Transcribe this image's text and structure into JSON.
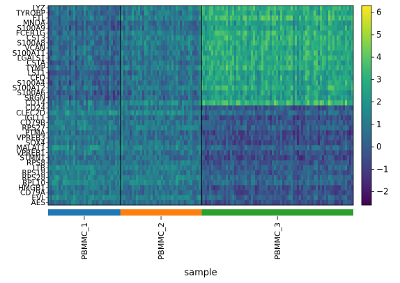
{
  "chart_data": {
    "type": "heatmap",
    "genes": [
      "LYZ",
      "TYROBP",
      "FTL",
      "MNDA",
      "S100A9",
      "FCER1G",
      "CST3",
      "S100A8",
      "VCAN",
      "S100A11",
      "LGALS1",
      "CSTA",
      "TYMP",
      "LST1",
      "CFD",
      "S100A4",
      "S100A12",
      "S100A6",
      "SRGN",
      "CD14",
      "CD24",
      "CLEC2D",
      "IGLL1",
      "CD79B",
      "RPS27",
      "PTMA",
      "VPREB3",
      "SOX4",
      "MALAT1",
      "VPREB1",
      "STMN1",
      "RPS8",
      "LTB",
      "RPS18",
      "RPS28",
      "RPL10",
      "HMGB1",
      "CD79A",
      "EVL",
      "AES"
    ],
    "samples": [
      {
        "label": "PBMMC_1",
        "color": "#1f77b4",
        "cells": 125
      },
      {
        "label": "PBMMC_2",
        "color": "#ff7f0e",
        "cells": 140
      },
      {
        "label": "PBMMC_3",
        "color": "#2ca02c",
        "cells": 262
      }
    ],
    "xlabel": "sample",
    "colorbar": {
      "vmin": -2.6,
      "vmax": 6.3,
      "ticks": [
        -2,
        -1,
        0,
        1,
        2,
        3,
        4,
        5,
        6
      ],
      "colormap": "viridis"
    },
    "group_lines": true,
    "expression_pattern": {
      "myeloid_genes_rows": [
        0,
        19
      ],
      "lymphoid_genes_rows": [
        20,
        39
      ],
      "myeloid_mean_by_sample": [
        0.5,
        1.0,
        2.8
      ],
      "lymphoid_mean_by_sample": [
        1.3,
        1.1,
        0.0
      ]
    }
  }
}
